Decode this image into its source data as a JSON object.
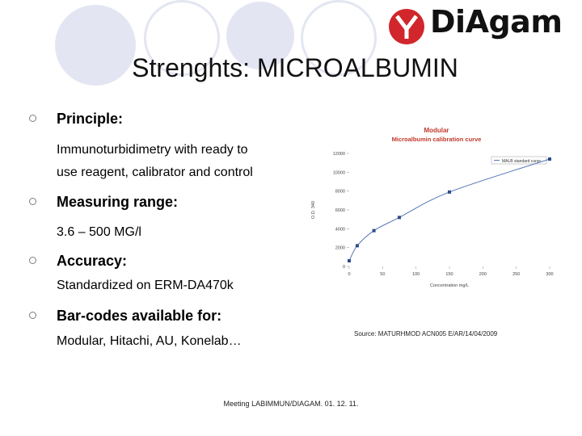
{
  "brand": {
    "name": "DiAgam",
    "logo_color": "#d1262b"
  },
  "title": "Strenghts: MICROALBUMIN",
  "bullets": [
    {
      "heading": "Principle:",
      "lines": [
        "Immunoturbidimetry with ready to",
        "use reagent, calibrator and control"
      ]
    },
    {
      "heading": "Measuring range:",
      "lines": [
        "3.6 – 500 MG/l"
      ]
    },
    {
      "heading": "Accuracy:",
      "lines": [
        "Standardized on ERM-DA470k"
      ]
    },
    {
      "heading": "Bar-codes available for:",
      "lines": [
        "Modular, Hitachi, AU, Konelab…"
      ]
    }
  ],
  "chart_data": {
    "type": "line",
    "title": "Modular",
    "subtitle": "Microalbumin calibration curve",
    "legend": "MALB standard curve",
    "legend_position": "top-right",
    "xlabel": "Concentration mg/L",
    "ylabel": "O.D. 340",
    "xlim": [
      0,
      300
    ],
    "ylim": [
      0,
      12000
    ],
    "xticks": [
      "0",
      "50",
      "100",
      "150",
      "200",
      "250",
      "300"
    ],
    "yticks": [
      "0",
      "2000",
      "4000",
      "6000",
      "8000",
      "10000",
      "12000"
    ],
    "grid": false,
    "series": [
      {
        "x": [
          0,
          12,
          37,
          75,
          150,
          300
        ],
        "y": [
          600,
          2200,
          3800,
          5200,
          7900,
          11400
        ]
      }
    ],
    "line_color": "#5577b8",
    "title_color": "#c0392b"
  },
  "source": "Source: MATURHMOD ACN005 E/AR/14/04/2009",
  "footer": "Meeting LABIMMUN/DIAGAM. 01. 12. 11."
}
